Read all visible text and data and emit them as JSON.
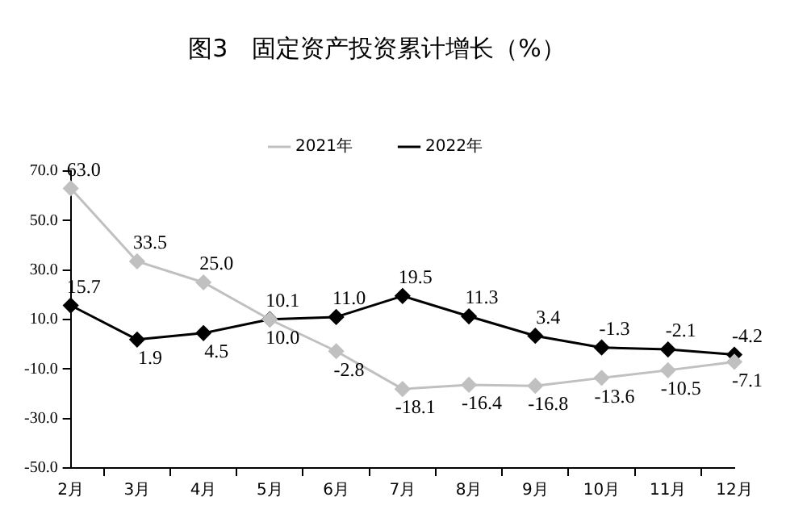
{
  "chart_data": {
    "type": "line",
    "title": "图3　固定资产投资累计增长（%）",
    "categories": [
      "2月",
      "3月",
      "4月",
      "5月",
      "6月",
      "7月",
      "8月",
      "9月",
      "10月",
      "11月",
      "12月"
    ],
    "series": [
      {
        "name": "2021年",
        "color": "#c0c0c0",
        "values": [
          63.0,
          33.5,
          25.0,
          10.0,
          -2.8,
          -18.1,
          -16.4,
          -16.8,
          -13.6,
          -10.5,
          -7.1
        ],
        "value_labels": [
          "63.0",
          "33.5",
          "25.0",
          "10.0",
          "-2.8",
          "-18.1",
          "-16.4",
          "-16.8",
          "-13.6",
          "-10.5",
          "-7.1"
        ]
      },
      {
        "name": "2022年",
        "color": "#000000",
        "values": [
          15.7,
          1.9,
          4.5,
          10.1,
          11.0,
          19.5,
          11.3,
          3.4,
          -1.3,
          -2.1,
          -4.2
        ],
        "value_labels": [
          "15.7",
          "1.9",
          "4.5",
          "10.1",
          "11.0",
          "19.5",
          "11.3",
          "3.4",
          "-1.3",
          "-2.1",
          "-4.2"
        ]
      }
    ],
    "ylim": [
      -50,
      70
    ],
    "yticks": [
      {
        "value": -50,
        "label": "-50.0"
      },
      {
        "value": -30,
        "label": "-30.0"
      },
      {
        "value": -10,
        "label": "-10.0"
      },
      {
        "value": 10,
        "label": "10.0"
      },
      {
        "value": 30,
        "label": "30.0"
      },
      {
        "value": 50,
        "label": "50.0"
      },
      {
        "value": 70,
        "label": "70.0"
      }
    ],
    "grid": false,
    "legend": "top",
    "marker": "diamond",
    "line_style": "solid"
  }
}
